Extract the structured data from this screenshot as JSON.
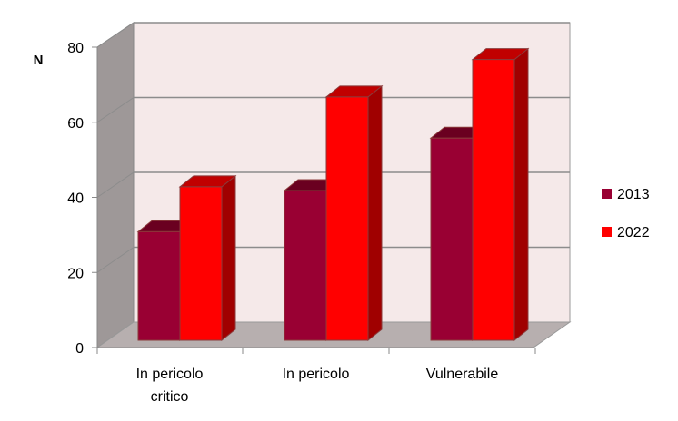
{
  "chart_data": {
    "type": "bar",
    "title": "",
    "ylabel": "N",
    "xlabel": "",
    "categories": [
      [
        "In pericolo",
        "critico"
      ],
      [
        "In pericolo"
      ],
      [
        "Vulnerabile"
      ]
    ],
    "series": [
      {
        "name": "2013",
        "values": [
          29,
          40,
          54
        ],
        "color": "#990033"
      },
      {
        "name": "2022",
        "values": [
          41,
          65,
          75
        ],
        "color": "#FF0000"
      }
    ],
    "ylim": [
      0,
      80
    ],
    "yticks": [
      "0",
      "20",
      "40",
      "60",
      "80"
    ],
    "grid": true,
    "legend": "right",
    "style": "3d-clustered",
    "wall_color": "#F5E9E9",
    "floor_color": "#B7AFAF"
  }
}
